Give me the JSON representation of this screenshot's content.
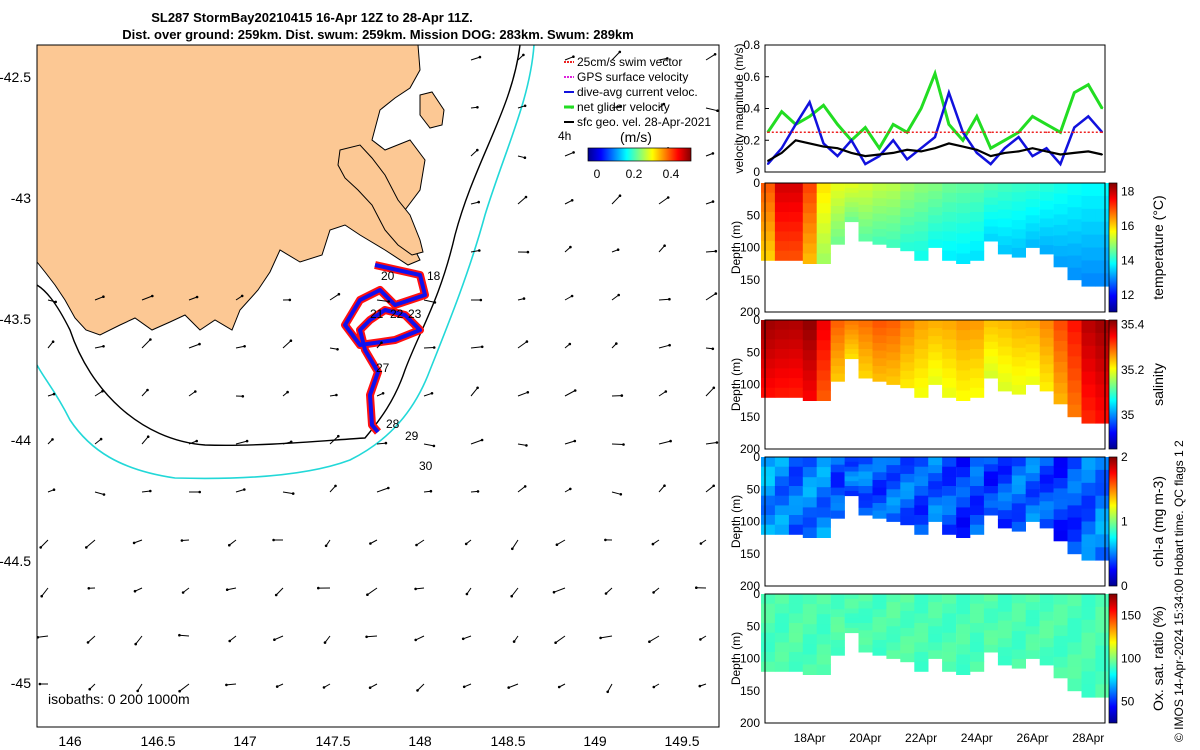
{
  "title_line1": "SL287 StormBay20210415 16-Apr 12Z to 28-Apr 11Z.",
  "title_line2": "Dist. over ground: 259km. Dist. swum: 259km. Mission DOG: 283km. Swum: 289km",
  "map": {
    "lon_ticks": [
      "146",
      "146.5",
      "147",
      "147.5",
      "148",
      "148.5",
      "149",
      "149.5"
    ],
    "lat_ticks": [
      "-42.5",
      "-43",
      "-43.5",
      "-44",
      "-44.5",
      "-45"
    ],
    "legend": [
      "25cm/s swim vector",
      "GPS surface velocity",
      "dive-avg current veloc.",
      "net glider velocity",
      "sfc geo. vel. 28-Apr-2021"
    ],
    "legend_extra": "4h",
    "colorbar_title": "(m/s)",
    "colorbar_ticks": [
      "0",
      "0.2",
      "0.4"
    ],
    "isobaths_label": "isobaths: 0   200  1000m",
    "day_labels": [
      "20",
      "18",
      "21",
      "22",
      "23",
      "27",
      "28",
      "29",
      "30"
    ]
  },
  "chart_data": [
    {
      "type": "line",
      "title": "",
      "ylabel": "velocity magnitude (m/s)",
      "ylim": [
        0,
        0.8
      ],
      "yticks": [
        "0",
        "0.2",
        "0.4",
        "0.6",
        "0.8"
      ],
      "x": [
        16.5,
        17,
        17.5,
        18,
        18.5,
        19,
        19.5,
        20,
        20.5,
        21,
        21.5,
        22,
        22.5,
        23,
        23.5,
        24,
        24.5,
        25,
        25.5,
        26,
        26.5,
        27,
        27.5,
        28,
        28.5
      ],
      "series": [
        {
          "name": "net glider velocity",
          "color": "#22dd22",
          "values": [
            0.25,
            0.38,
            0.3,
            0.35,
            0.42,
            0.3,
            0.2,
            0.28,
            0.15,
            0.3,
            0.25,
            0.4,
            0.62,
            0.3,
            0.2,
            0.35,
            0.15,
            0.2,
            0.25,
            0.35,
            0.3,
            0.25,
            0.5,
            0.55,
            0.4
          ]
        },
        {
          "name": "dive-avg current veloc.",
          "color": "#1111dd",
          "values": [
            0.05,
            0.15,
            0.3,
            0.44,
            0.18,
            0.1,
            0.2,
            0.05,
            0.1,
            0.2,
            0.08,
            0.15,
            0.22,
            0.5,
            0.25,
            0.12,
            0.05,
            0.15,
            0.22,
            0.1,
            0.15,
            0.05,
            0.28,
            0.35,
            0.25
          ]
        },
        {
          "name": "sfc geo. vel.",
          "color": "#000000",
          "values": [
            0.07,
            0.12,
            0.2,
            0.18,
            0.16,
            0.15,
            0.12,
            0.1,
            0.11,
            0.12,
            0.14,
            0.13,
            0.15,
            0.18,
            0.16,
            0.14,
            0.1,
            0.12,
            0.13,
            0.15,
            0.13,
            0.11,
            0.12,
            0.13,
            0.11
          ]
        },
        {
          "name": "25cm/s swim vector",
          "color": "#ee2222",
          "values": [
            0.25,
            0.25,
            0.25,
            0.25,
            0.25,
            0.25,
            0.25,
            0.25,
            0.25,
            0.25,
            0.25,
            0.25,
            0.25,
            0.25,
            0.25,
            0.25,
            0.25,
            0.25,
            0.25,
            0.25,
            0.25,
            0.25,
            0.25,
            0.25,
            0.25
          ]
        }
      ]
    },
    {
      "type": "heatmap",
      "variable": "temperature",
      "cbar_label": "temperature (°C)",
      "cbar_ticks": [
        "12",
        "14",
        "16",
        "18"
      ],
      "clim": [
        11,
        18.5
      ],
      "ylabel": "Depth (m)",
      "yticks": [
        "0",
        "50",
        "100",
        "150",
        "200"
      ],
      "days": [
        16.5,
        17,
        17.5,
        18,
        18.5,
        19,
        19.5,
        20,
        20.5,
        21,
        21.5,
        22,
        22.5,
        23,
        23.5,
        24,
        24.5,
        25,
        25.5,
        26,
        26.5,
        27,
        27.5,
        28,
        28.5
      ],
      "max_depth": [
        120,
        120,
        120,
        125,
        125,
        95,
        60,
        90,
        95,
        100,
        105,
        120,
        100,
        120,
        125,
        120,
        90,
        110,
        115,
        100,
        110,
        130,
        150,
        160,
        160
      ],
      "values": [
        16.5,
        17.8,
        18,
        17.5,
        16,
        15.5,
        15.5,
        15.4,
        15.2,
        15.2,
        15,
        14.8,
        14.8,
        14.6,
        14.5,
        14.5,
        14.4,
        14.3,
        14.2,
        14.2,
        14.1,
        14.0,
        13.9,
        13.8,
        13.8
      ]
    },
    {
      "type": "heatmap",
      "variable": "salinity",
      "cbar_label": "salinity",
      "cbar_ticks": [
        "35",
        "35.2",
        "35.4"
      ],
      "clim": [
        34.85,
        35.42
      ],
      "ylabel": "Depth (m)",
      "yticks": [
        "0",
        "50",
        "100",
        "150",
        "200"
      ],
      "days": [
        16.5,
        17,
        17.5,
        18,
        18.5,
        19,
        19.5,
        20,
        20.5,
        21,
        21.5,
        22,
        22.5,
        23,
        23.5,
        24,
        24.5,
        25,
        25.5,
        26,
        26.5,
        27,
        27.5,
        28,
        28.5
      ],
      "max_depth": [
        120,
        120,
        120,
        125,
        125,
        95,
        60,
        90,
        95,
        100,
        105,
        120,
        100,
        120,
        125,
        120,
        90,
        110,
        115,
        100,
        110,
        130,
        150,
        160,
        160
      ],
      "values": [
        35.4,
        35.4,
        35.38,
        35.42,
        35.38,
        35.3,
        35.28,
        35.28,
        35.3,
        35.3,
        35.28,
        35.26,
        35.25,
        35.25,
        35.26,
        35.27,
        35.24,
        35.24,
        35.25,
        35.25,
        35.26,
        35.3,
        35.32,
        35.38,
        35.4
      ]
    },
    {
      "type": "heatmap",
      "variable": "chl-a",
      "cbar_label": "chl-a (mg m-3)",
      "cbar_ticks": [
        "0",
        "1",
        "2"
      ],
      "clim": [
        0,
        2
      ],
      "ylabel": "Depth (m)",
      "yticks": [
        "0",
        "50",
        "100",
        "150",
        "200"
      ],
      "days": [
        16.5,
        17,
        17.5,
        18,
        18.5,
        19,
        19.5,
        20,
        20.5,
        21,
        21.5,
        22,
        22.5,
        23,
        23.5,
        24,
        24.5,
        25,
        25.5,
        26,
        26.5,
        27,
        27.5,
        28,
        28.5
      ],
      "max_depth": [
        120,
        120,
        120,
        125,
        125,
        95,
        60,
        90,
        95,
        100,
        105,
        120,
        100,
        120,
        125,
        120,
        90,
        110,
        115,
        100,
        110,
        130,
        150,
        160,
        160
      ],
      "values": [
        0.55,
        0.5,
        0.45,
        0.5,
        0.5,
        0.4,
        0.45,
        0.45,
        0.4,
        0.45,
        0.45,
        0.4,
        0.45,
        0.4,
        0.35,
        0.4,
        0.35,
        0.4,
        0.45,
        0.45,
        0.4,
        0.35,
        0.4,
        0.45,
        0.5
      ]
    },
    {
      "type": "heatmap",
      "variable": "oxygen saturation",
      "cbar_label": "Ox. sat. ratio (%)",
      "cbar_ticks": [
        "50",
        "100",
        "150"
      ],
      "clim": [
        25,
        175
      ],
      "ylabel": "Depth (m)",
      "yticks": [
        "0",
        "50",
        "100",
        "150",
        "200"
      ],
      "days": [
        16.5,
        17,
        17.5,
        18,
        18.5,
        19,
        19.5,
        20,
        20.5,
        21,
        21.5,
        22,
        22.5,
        23,
        23.5,
        24,
        24.5,
        25,
        25.5,
        26,
        26.5,
        27,
        27.5,
        28,
        28.5
      ],
      "max_depth": [
        120,
        120,
        120,
        125,
        125,
        95,
        60,
        90,
        95,
        100,
        105,
        120,
        100,
        120,
        125,
        120,
        90,
        110,
        115,
        100,
        110,
        130,
        150,
        160,
        160
      ],
      "values": [
        92,
        92,
        93,
        92,
        92,
        93,
        92,
        92,
        92,
        93,
        93,
        92,
        92,
        92,
        92,
        92,
        93,
        92,
        92,
        92,
        93,
        92,
        92,
        92,
        92
      ]
    }
  ],
  "xaxis_dates": [
    "18Apr",
    "20Apr",
    "22Apr",
    "24Apr",
    "26Apr",
    "28Apr"
  ],
  "right_annotation": "© IMOS 14-Apr-2024 15:34:00 Hobart time. QC flags 1  2"
}
